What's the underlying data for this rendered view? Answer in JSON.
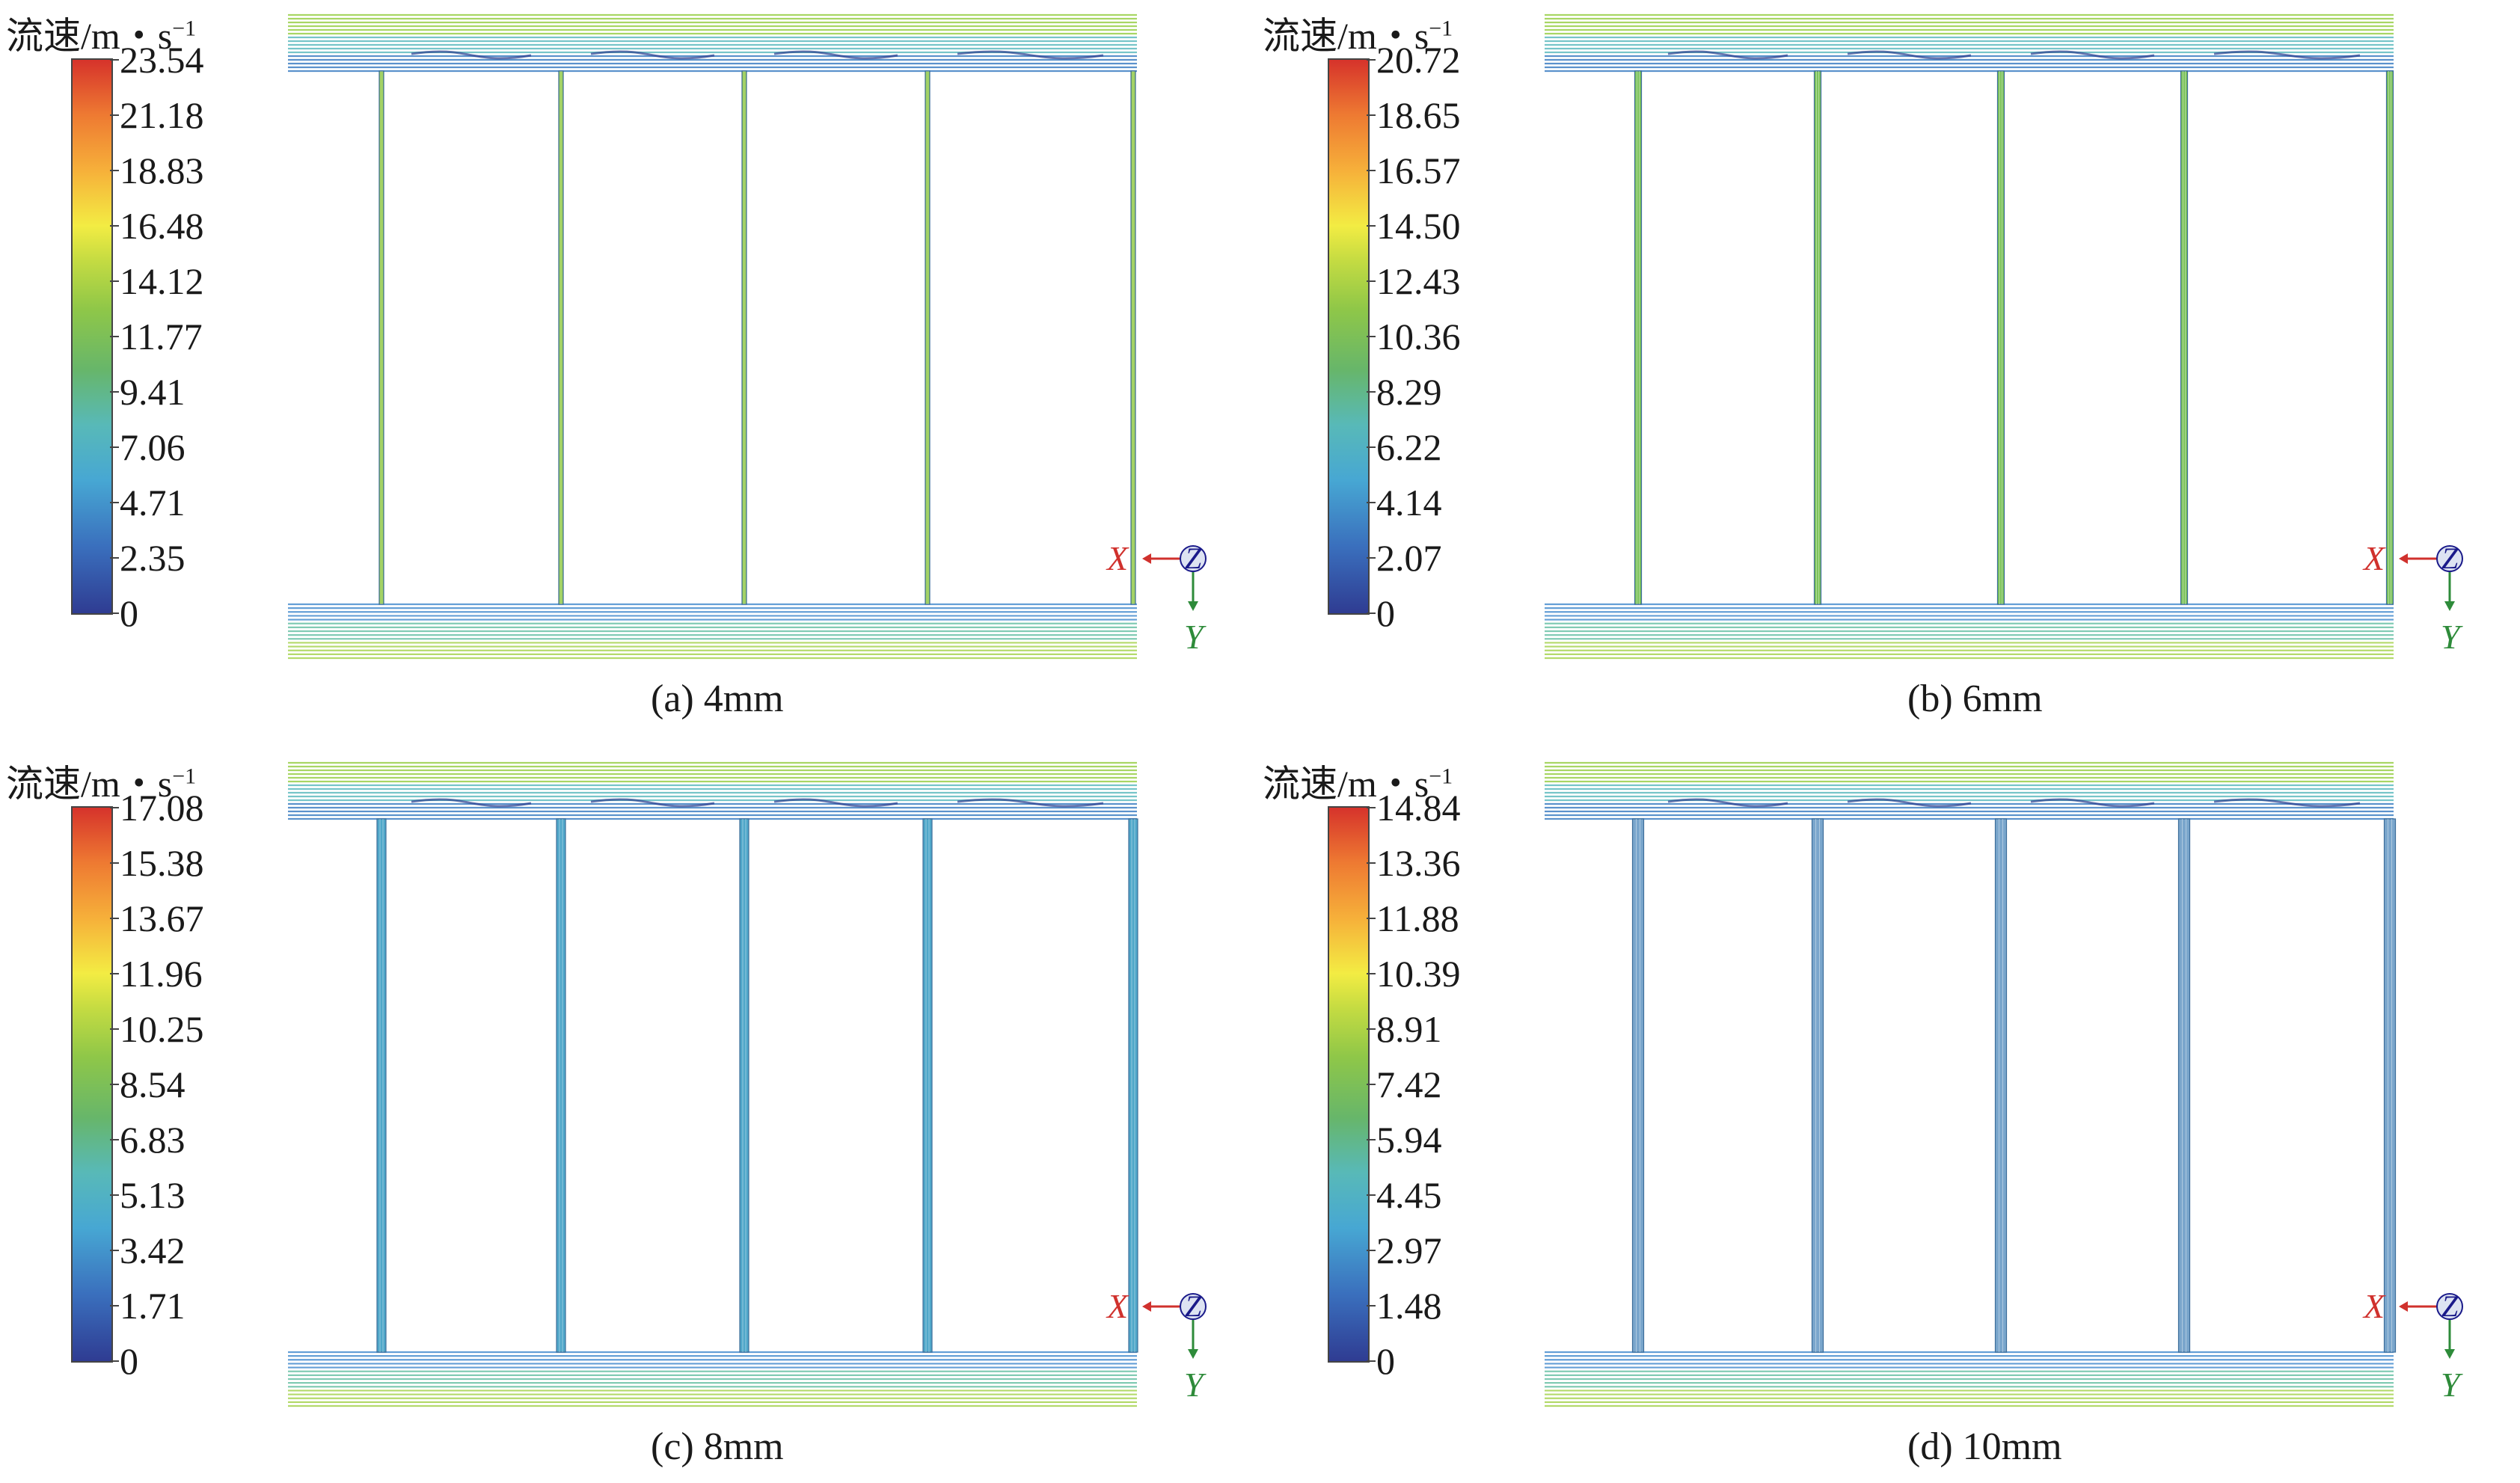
{
  "panels": [
    {
      "legend_title": "流速/m・s",
      "legend_sup": "−1",
      "ticks": [
        "23.54",
        "21.18",
        "18.83",
        "16.48",
        "14.12",
        "11.77",
        "9.41",
        "7.06",
        "4.71",
        "2.35",
        "0"
      ],
      "caption": "(a) 4mm",
      "axis": {
        "x": "X",
        "y": "Y",
        "z": "Z"
      },
      "channel_color": "#8cc63f"
    },
    {
      "legend_title": "流速/m・s",
      "legend_sup": "−1",
      "ticks": [
        "20.72",
        "18.65",
        "16.57",
        "14.50",
        "12.43",
        "10.36",
        "8.29",
        "6.22",
        "4.14",
        "2.07",
        "0"
      ],
      "caption": "(b) 6mm",
      "axis": {
        "x": "X",
        "y": "Y",
        "z": "Z"
      },
      "channel_color": "#7cc35a"
    },
    {
      "legend_title": "流速/m・s",
      "legend_sup": "−1",
      "ticks": [
        "17.08",
        "15.38",
        "13.67",
        "11.96",
        "10.25",
        "8.54",
        "6.83",
        "5.13",
        "3.42",
        "1.71",
        "0"
      ],
      "caption": "(c) 8mm",
      "axis": {
        "x": "X",
        "y": "Y",
        "z": "Z"
      },
      "channel_color": "#4fa7c9"
    },
    {
      "legend_title": "流速/m・s",
      "legend_sup": "−1",
      "ticks": [
        "14.84",
        "13.36",
        "11.88",
        "10.39",
        "8.91",
        "7.42",
        "5.94",
        "4.45",
        "2.97",
        "1.48",
        "0"
      ],
      "caption": "(d) 10mm",
      "axis": {
        "x": "X",
        "y": "Y",
        "z": "Z"
      },
      "channel_color": "#7aa6cc"
    }
  ]
}
